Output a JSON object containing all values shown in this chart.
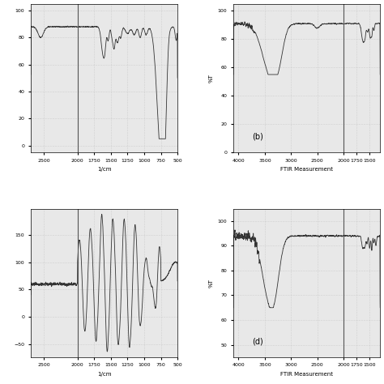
{
  "background_color": "#e8e8e8",
  "grid_color": "#bbbbbb",
  "line_color": "#333333",
  "fig_bg": "#ffffff",
  "subplot_a": {
    "xmin": 500,
    "xmax": 2700,
    "ymin": -5,
    "ymax": 105,
    "xlabel": "1/cm",
    "xticks": [
      2500,
      2000,
      1750,
      1500,
      1250,
      1000,
      750,
      500
    ],
    "vline": 2000
  },
  "subplot_b": {
    "xmin": 1300,
    "xmax": 4100,
    "ymin": 0,
    "ymax": 105,
    "xlabel": "FTIR Measurement",
    "ylabel": "%T",
    "yticks": [
      0,
      20,
      40,
      60,
      80,
      100
    ],
    "xticks": [
      4000,
      3500,
      3000,
      2500,
      2000,
      1750,
      1500
    ],
    "vline": 2000,
    "label": "(b)"
  },
  "subplot_c": {
    "xmin": 500,
    "xmax": 2700,
    "xlabel": "1/cm",
    "xticks": [
      2500,
      2000,
      1750,
      1500,
      1250,
      1000,
      750,
      500
    ],
    "vline": 2000
  },
  "subplot_d": {
    "xmin": 1300,
    "xmax": 4100,
    "ymin": 45,
    "ymax": 105,
    "xlabel": "FTIR Measurement",
    "ylabel": "%T",
    "yticks": [
      50,
      60,
      70,
      80,
      90,
      100
    ],
    "xticks": [
      4000,
      3500,
      3000,
      2500,
      2000,
      1750,
      1500
    ],
    "vline": 2000,
    "label": "(d)"
  }
}
